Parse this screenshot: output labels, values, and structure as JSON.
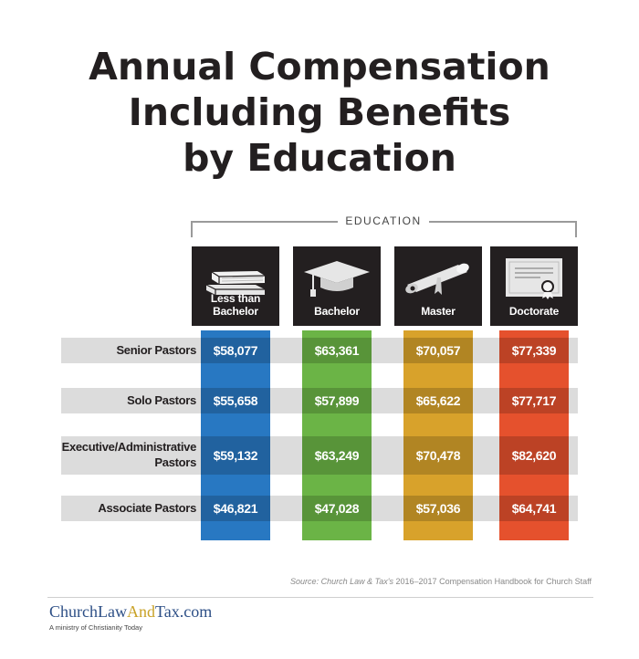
{
  "title": {
    "line1": "Annual Compensation",
    "line2": "Including Benefits",
    "line3": "by Education"
  },
  "education_label": "EDUCATION",
  "colors": {
    "less_than_bachelor": "#2878c2",
    "bachelor": "#6bb446",
    "master": "#d8a22b",
    "doctorate": "#e5512d",
    "header_bg": "#231f20",
    "row_band": "#dcdcdc"
  },
  "icons": [
    "books-icon",
    "graduation-cap-icon",
    "diploma-scroll-icon",
    "certificate-icon"
  ],
  "chart_data": {
    "type": "table",
    "title": "Annual Compensation Including Benefits by Education",
    "column_group_label": "EDUCATION",
    "categories": [
      "Less than Bachelor",
      "Bachelor",
      "Master",
      "Doctorate"
    ],
    "rows": [
      "Senior Pastors",
      "Solo Pastors",
      "Executive/Administrative Pastors",
      "Associate Pastors"
    ],
    "row_label_lines": [
      [
        "Senior Pastors"
      ],
      [
        "Solo Pastors"
      ],
      [
        "Executive/Administrative",
        "Pastors"
      ],
      [
        "Associate Pastors"
      ]
    ],
    "values": [
      [
        "$58,077",
        "$63,361",
        "$70,057",
        "$77,339"
      ],
      [
        "$55,658",
        "$57,899",
        "$65,622",
        "$77,717"
      ],
      [
        "$59,132",
        "$63,249",
        "$70,478",
        "$82,620"
      ],
      [
        "$46,821",
        "$47,028",
        "$57,036",
        "$64,741"
      ]
    ]
  },
  "source": {
    "prefix": "Source: ",
    "italic": "Church Law & Tax's",
    "rest": " 2016–2017 Compensation Handbook for Church Staff"
  },
  "footer": {
    "brand_part1": "ChurchLaw",
    "brand_part2": "And",
    "brand_part3": "Tax.com",
    "tagline": "A ministry of Christianity Today"
  }
}
